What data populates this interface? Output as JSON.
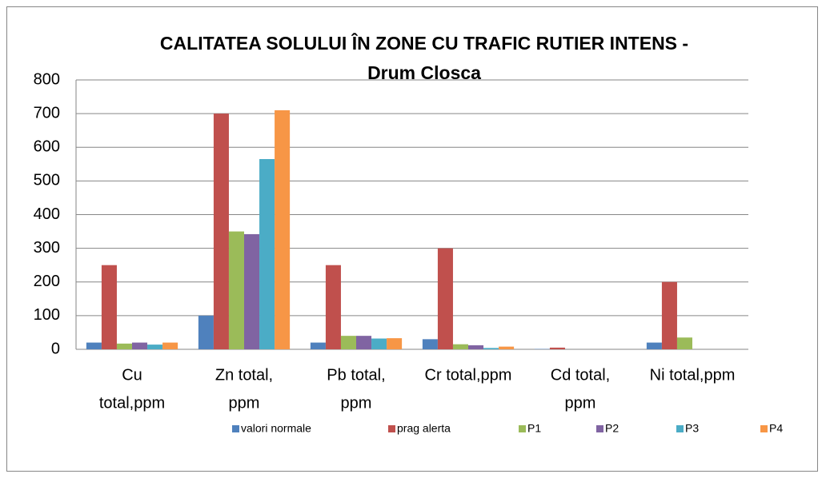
{
  "chart_data": {
    "type": "bar",
    "title": [
      "CALITATEA SOLULUI ÎN ZONE CU TRAFIC RUTIER INTENS -",
      "Drum Closca"
    ],
    "categories": [
      [
        "Cu",
        "total,ppm"
      ],
      [
        "Zn total,",
        "ppm"
      ],
      [
        "Pb total,",
        "ppm"
      ],
      [
        "Cr total,ppm"
      ],
      [
        "Cd total,",
        "ppm"
      ],
      [
        "Ni total,ppm"
      ]
    ],
    "series": [
      {
        "name": "valori normale",
        "color": "#4f81bd",
        "values": [
          20,
          100,
          20,
          30,
          1,
          20
        ]
      },
      {
        "name": "prag alerta",
        "color": "#c0504d",
        "values": [
          250,
          700,
          250,
          300,
          5,
          200
        ]
      },
      {
        "name": "P1",
        "color": "#9bbb59",
        "values": [
          17,
          350,
          40,
          15,
          null,
          35
        ]
      },
      {
        "name": "P2",
        "color": "#8064a2",
        "values": [
          20,
          342,
          40,
          12,
          null,
          null
        ]
      },
      {
        "name": "P3",
        "color": "#4bacc6",
        "values": [
          14,
          565,
          32,
          4,
          null,
          null
        ]
      },
      {
        "name": "P4",
        "color": "#f79646",
        "values": [
          20,
          710,
          33,
          8,
          null,
          null
        ]
      }
    ],
    "ylim": [
      0,
      800
    ],
    "yticks": [
      0,
      100,
      200,
      300,
      400,
      500,
      600,
      700,
      800
    ],
    "grid": true,
    "legend": "bottom"
  }
}
